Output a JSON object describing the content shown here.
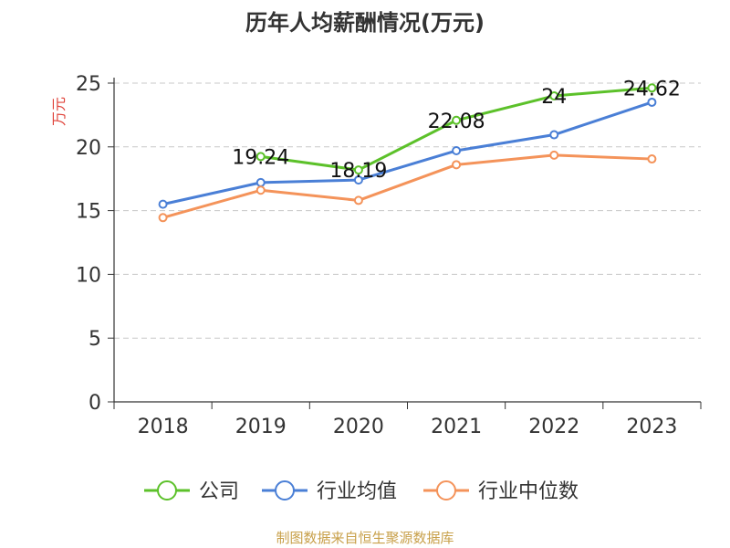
{
  "chart_data": {
    "type": "line",
    "title": "历年人均薪酬情况(万元)",
    "ylabel": "万元",
    "xlabel": "",
    "ylim": [
      0,
      25
    ],
    "yticks": [
      0,
      5,
      10,
      15,
      20,
      25
    ],
    "grid": true,
    "legend_position": "bottom",
    "categories": [
      "2018",
      "2019",
      "2020",
      "2021",
      "2022",
      "2023"
    ],
    "series": [
      {
        "name": "公司",
        "color": "#5cc12a",
        "values": [
          null,
          19.24,
          18.19,
          22.08,
          24,
          24.62
        ],
        "labels": [
          "",
          "19.24",
          "18.19",
          "22.08",
          "24",
          "24.62"
        ]
      },
      {
        "name": "行业均值",
        "color": "#4a7fd6",
        "values": [
          15.5,
          17.2,
          17.4,
          19.7,
          20.95,
          23.5
        ],
        "labels": [
          "",
          "",
          "",
          "",
          "",
          ""
        ]
      },
      {
        "name": "行业中位数",
        "color": "#f4935a",
        "values": [
          14.45,
          16.6,
          15.8,
          18.6,
          19.35,
          19.05
        ],
        "labels": [
          "",
          "",
          "",
          "",
          "",
          ""
        ]
      }
    ]
  },
  "source_note": "制图数据来自恒生聚源数据库"
}
